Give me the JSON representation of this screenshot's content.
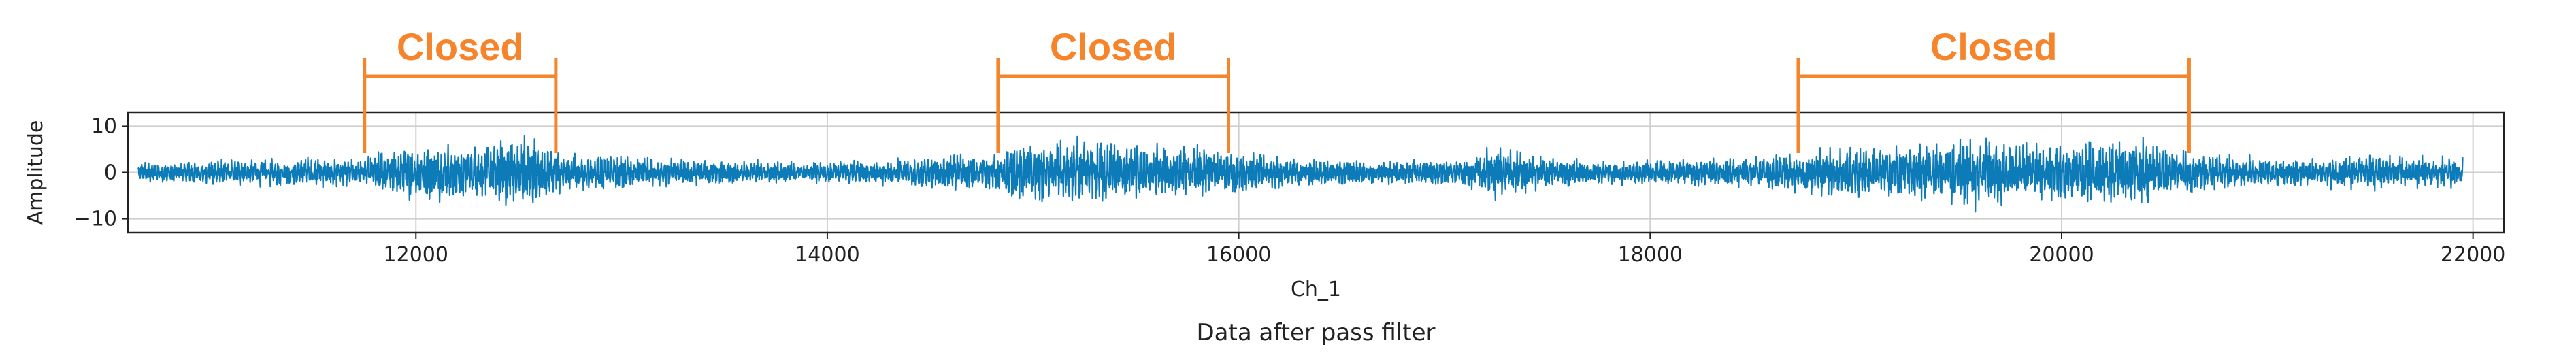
{
  "chart_data": {
    "type": "line",
    "title": "",
    "xlabel": "Ch_1",
    "ylabel": "Amplitude",
    "caption": "Data after pass filter",
    "xlim": [
      10600,
      22150
    ],
    "ylim": [
      -13,
      13
    ],
    "xticks": [
      12000,
      14000,
      16000,
      18000,
      20000,
      22000
    ],
    "yticks": [
      -10,
      0,
      10
    ],
    "grid": true,
    "series": [
      {
        "color": "#0c7bb8",
        "x_range": [
          10650,
          21950
        ],
        "envelope": {
          "x": [
            10650,
            11000,
            11400,
            11750,
            11800,
            12050,
            12250,
            12500,
            12550,
            12700,
            12850,
            13100,
            13400,
            13800,
            14200,
            14500,
            14550,
            14800,
            14850,
            15000,
            15200,
            15400,
            15700,
            15950,
            16300,
            16700,
            17100,
            17250,
            17500,
            17900,
            18300,
            18700,
            18800,
            19100,
            19400,
            19600,
            19700,
            19900,
            20100,
            20300,
            20500,
            20700,
            20900,
            21200,
            21500,
            21700,
            21950
          ],
          "amplitude": [
            1.8,
            2.2,
            2.8,
            2.5,
            4.0,
            5.2,
            5.0,
            6.5,
            7.0,
            4.0,
            3.5,
            2.8,
            2.5,
            2.0,
            2.2,
            3.0,
            4.2,
            2.8,
            4.5,
            5.5,
            6.5,
            5.5,
            5.2,
            4.0,
            2.6,
            2.2,
            2.4,
            5.0,
            2.8,
            2.2,
            2.5,
            3.5,
            4.5,
            5.0,
            5.5,
            7.5,
            6.5,
            5.0,
            6.0,
            7.0,
            5.0,
            3.5,
            3.0,
            2.5,
            3.5,
            3.0,
            2.8
          ]
        }
      }
    ],
    "annotations": [
      {
        "label": "Closed",
        "x_start": 11750,
        "x_end": 12680
      },
      {
        "label": "Closed",
        "x_start": 14830,
        "x_end": 15950
      },
      {
        "label": "Closed",
        "x_start": 18720,
        "x_end": 20620
      }
    ],
    "annotation_color": "#f5842a"
  }
}
